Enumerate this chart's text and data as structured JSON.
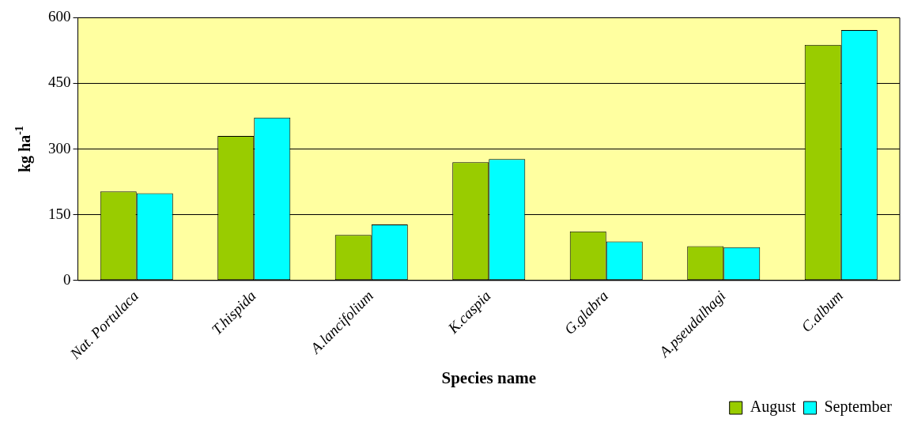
{
  "chart_data": {
    "type": "bar",
    "xlabel": "Species name",
    "ylabel": "kg ha$^{-1}$",
    "categories": [
      "Nat. Portulaca",
      "T.hispida",
      "A.lancifolium",
      "K.caspia",
      "G.glabra",
      "A.pseudalhagi",
      "C.album"
    ],
    "series": [
      {
        "name": "August",
        "color": "#99cc00",
        "values": [
          203,
          330,
          104,
          270,
          112,
          78,
          538
        ]
      },
      {
        "name": "September",
        "color": "#00ffff",
        "values": [
          199,
          372,
          128,
          277,
          89,
          76,
          572
        ]
      }
    ],
    "ylim": [
      0,
      600
    ],
    "yticks": [
      0,
      150,
      300,
      450,
      600
    ],
    "grid": "y",
    "legend": "bottom right"
  }
}
